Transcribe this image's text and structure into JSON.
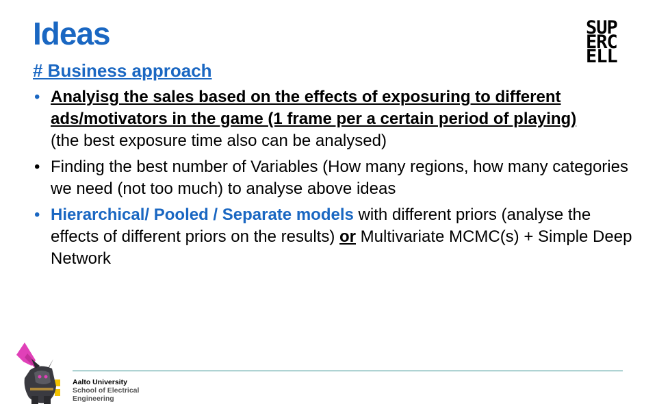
{
  "slide": {
    "title": "Ideas",
    "logo_lines": [
      "SUP",
      "ERC",
      "ELL"
    ],
    "subheading": "# Business approach",
    "bullets": [
      {
        "bold_underlined": "Analyisg the sales based on the effects of exposuring to different ads/motivators in the game (1 frame per a certain period of playing)",
        "rest": "(the best exposure time also can be analysed)"
      },
      {
        "text": "Finding the best number of Variables (How many regions, how many categories we need (not too much) to analyse above ideas"
      },
      {
        "highlight": "Hierarchical/ Pooled / Separate models",
        "mid": " with different priors (analyse the effects of different priors on the results) ",
        "or": "or",
        "end": " Multivariate MCMC(s) + Simple Deep Network"
      }
    ],
    "bullet_glyph": "•"
  },
  "footer": {
    "university": "Aalto University",
    "school_line1": "School of Electrical",
    "school_line2": "Engineering"
  },
  "colors": {
    "accent": "#1a67c2",
    "divider": "#2b8a8a"
  }
}
